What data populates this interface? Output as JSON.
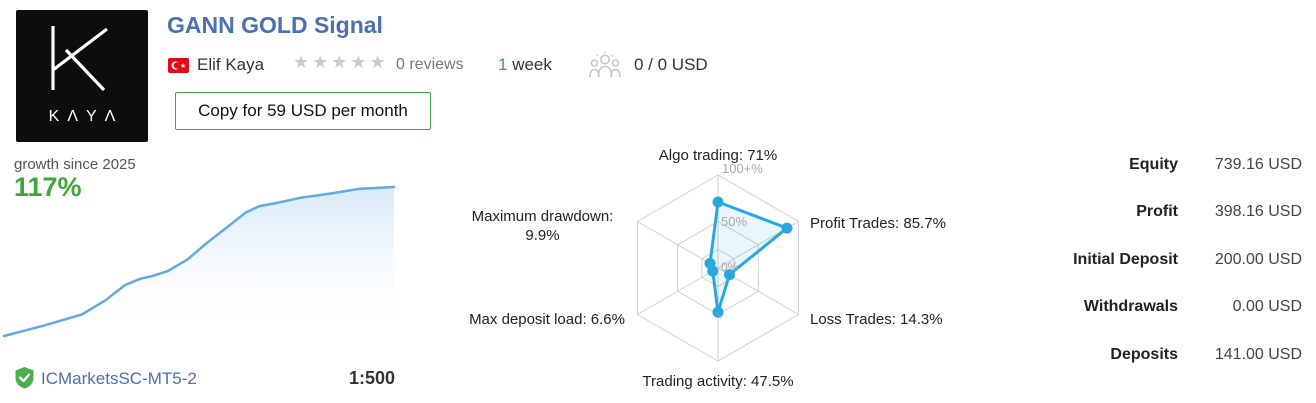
{
  "colors": {
    "accent-blue": "#4a70b5",
    "green": "#3fa63c",
    "chart-line-blue": "#61abe0",
    "radar-blue": "#29a8e0",
    "star-gray": "#cbcbcb",
    "button-border-green": "#43a047",
    "flag-red": "#e30a17",
    "shield-green": "#4cae4c"
  },
  "header": {
    "title": "GANN GOLD Signal",
    "author": "Elif Kaya",
    "author_country": "Turkey",
    "rating": {
      "stars_display": "★★★★★",
      "stars_filled": 0,
      "stars_total": 5,
      "reviews_label": "0 reviews"
    },
    "age": {
      "value": "1",
      "unit": "week"
    },
    "subscribers": "0 / 0 USD",
    "copy_button_label": "Copy for 59 USD per month",
    "logo_wordmark": "KΛYΛ"
  },
  "growth": {
    "label": "growth since 2025",
    "value": "117%"
  },
  "account": {
    "broker": "ICMarketsSC-MT5-2",
    "leverage": "1:500"
  },
  "stats": {
    "rows": [
      {
        "label": "Equity",
        "value": "739.16 USD"
      },
      {
        "label": "Profit",
        "value": "398.16 USD"
      },
      {
        "label": "Initial Deposit",
        "value": "200.00 USD"
      },
      {
        "label": "Withdrawals",
        "value": "0.00 USD"
      },
      {
        "label": "Deposits",
        "value": "141.00 USD"
      }
    ]
  },
  "chart_data": [
    {
      "type": "area",
      "title": "growth since 2025",
      "final_value": 117,
      "ylim": [
        0,
        117
      ],
      "grid": false,
      "points": [
        [
          0,
          0
        ],
        [
          10,
          8
        ],
        [
          20,
          17
        ],
        [
          26,
          28
        ],
        [
          31,
          40
        ],
        [
          35,
          45
        ],
        [
          38,
          47
        ],
        [
          42,
          51
        ],
        [
          47,
          60
        ],
        [
          52,
          73
        ],
        [
          57,
          85
        ],
        [
          62,
          97
        ],
        [
          65.5,
          102
        ],
        [
          70,
          104.5
        ],
        [
          76,
          108.5
        ],
        [
          84,
          112
        ],
        [
          91,
          115.5
        ],
        [
          100,
          117
        ]
      ]
    },
    {
      "type": "radar",
      "max": 100,
      "ring_fractions": [
        1,
        0.5,
        0.2
      ],
      "ring_labels": [
        "100+%",
        "50%",
        "0%"
      ],
      "axes": [
        {
          "name": "algo-trading",
          "label": "Algo trading: 71%",
          "value": 71
        },
        {
          "name": "profit-trades",
          "label": "Profit Trades: 85.7%",
          "value": 85.7
        },
        {
          "name": "loss-trades",
          "label": "Loss Trades: 14.3%",
          "value": 14.3
        },
        {
          "name": "trading-activity",
          "label": "Trading activity: 47.5%",
          "value": 47.5
        },
        {
          "name": "max-deposit-load",
          "label": "Max deposit load: 6.6%",
          "value": 6.6
        },
        {
          "name": "maximum-drawdown",
          "label": "Maximum drawdown: 9.9%",
          "value": 9.9
        }
      ]
    }
  ]
}
